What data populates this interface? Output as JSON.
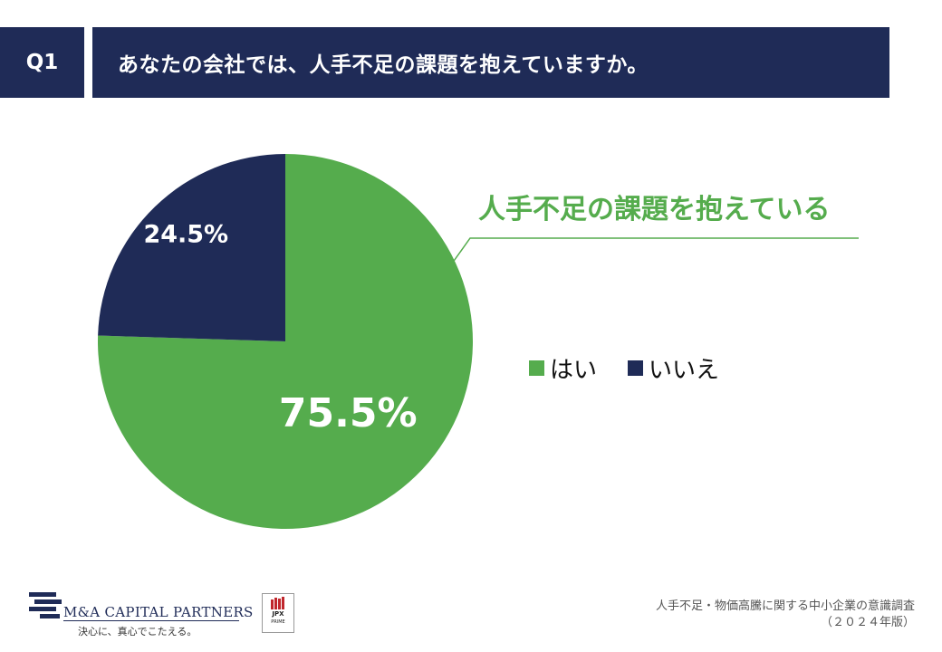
{
  "header": {
    "question_no": "Q1",
    "title": "あなたの会社では、人手不足の課題を抱えていますか。"
  },
  "chart_data": {
    "type": "pie",
    "categories": [
      "はい",
      "いいえ"
    ],
    "values": [
      75.5,
      24.5
    ],
    "data_labels": [
      "75.5%",
      "24.5%"
    ],
    "colors": [
      "#55ac4d",
      "#1f2b57"
    ],
    "annotation": "人手不足の課題を抱えている",
    "annotation_color": "#55ac4d",
    "legend_position": "right",
    "start": "top-clockwise"
  },
  "legend": {
    "items": [
      {
        "label": "はい",
        "color": "#55ac4d"
      },
      {
        "label": "いいえ",
        "color": "#1f2b57"
      }
    ]
  },
  "footer": {
    "logo_name": "M&A CAPITAL PARTNERS",
    "tagline": "決心に、真心でこたえる。",
    "jpx_line1": "JPX",
    "jpx_line2": "PRIME",
    "source_line1": "人手不足・物価高騰に関する中小企業の意識調査",
    "source_line2": "（２０２４年版）"
  }
}
